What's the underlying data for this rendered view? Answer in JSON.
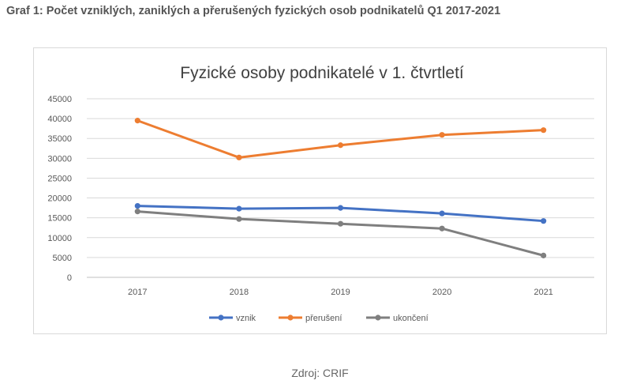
{
  "page": {
    "heading": "Graf 1: Počet vzniklých, zaniklých a přerušených fyzických osob podnikatelů Q1 2017-2021",
    "source": "Zdroj: CRIF"
  },
  "chart_data": {
    "type": "line",
    "title": "Fyzické osoby podnikatelé v 1. čtvrtletí",
    "xlabel": "",
    "ylabel": "",
    "categories": [
      "2017",
      "2018",
      "2019",
      "2020",
      "2021"
    ],
    "ylim": [
      0,
      45000
    ],
    "yticks": [
      "0",
      "5000",
      "10000",
      "15000",
      "20000",
      "25000",
      "30000",
      "35000",
      "40000",
      "45000"
    ],
    "grid": true,
    "legend": "bottom",
    "series": [
      {
        "name": "vznik",
        "color": "#4472c4",
        "values": [
          18000,
          17300,
          17500,
          16100,
          14200
        ]
      },
      {
        "name": "přerušení",
        "color": "#ed7d31",
        "values": [
          39500,
          30200,
          33300,
          35900,
          37100
        ]
      },
      {
        "name": "ukončení",
        "color": "#7f7f7f",
        "values": [
          16600,
          14700,
          13500,
          12300,
          5500
        ]
      }
    ]
  }
}
